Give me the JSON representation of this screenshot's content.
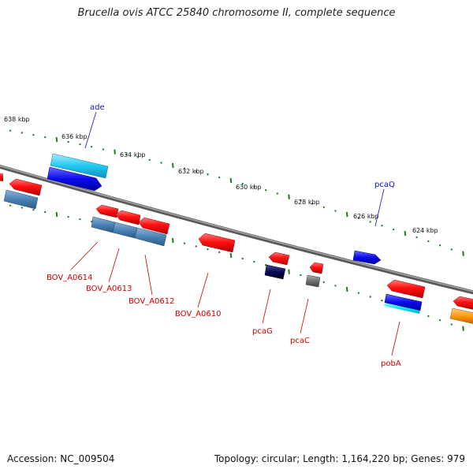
{
  "title": "Brucella ovis ATCC 25840 chromosome II, complete sequence",
  "footer": {
    "accession": "Accession: NC_009504",
    "topology": "Topology: circular; Length: 1,164,220 bp; Genes: 979"
  },
  "colors": {
    "backbone": "#8a8a8a",
    "tick": "#1e7d1e",
    "kbp_label": "#111111",
    "upper_gene_label": "#1010c0",
    "lower_gene_label": "#cc0000"
  },
  "kbp_labels": [
    "638 kbp",
    "636 kbp",
    "634 kbp",
    "632 kbp",
    "630 kbp",
    "628 kbp",
    "626 kbp",
    "624 kbp"
  ],
  "gene_labels_top": [
    "ade",
    "pcaQ"
  ],
  "gene_labels_bottom": [
    "BOV_A0614",
    "BOV_A0613",
    "BOV_A0612",
    "BOV_A0610",
    "pcaG",
    "pcaC",
    "pobA"
  ],
  "feature_colors": [
    "red",
    "steelblue",
    "lightblue",
    "blue",
    "navy",
    "gray",
    "orange"
  ]
}
